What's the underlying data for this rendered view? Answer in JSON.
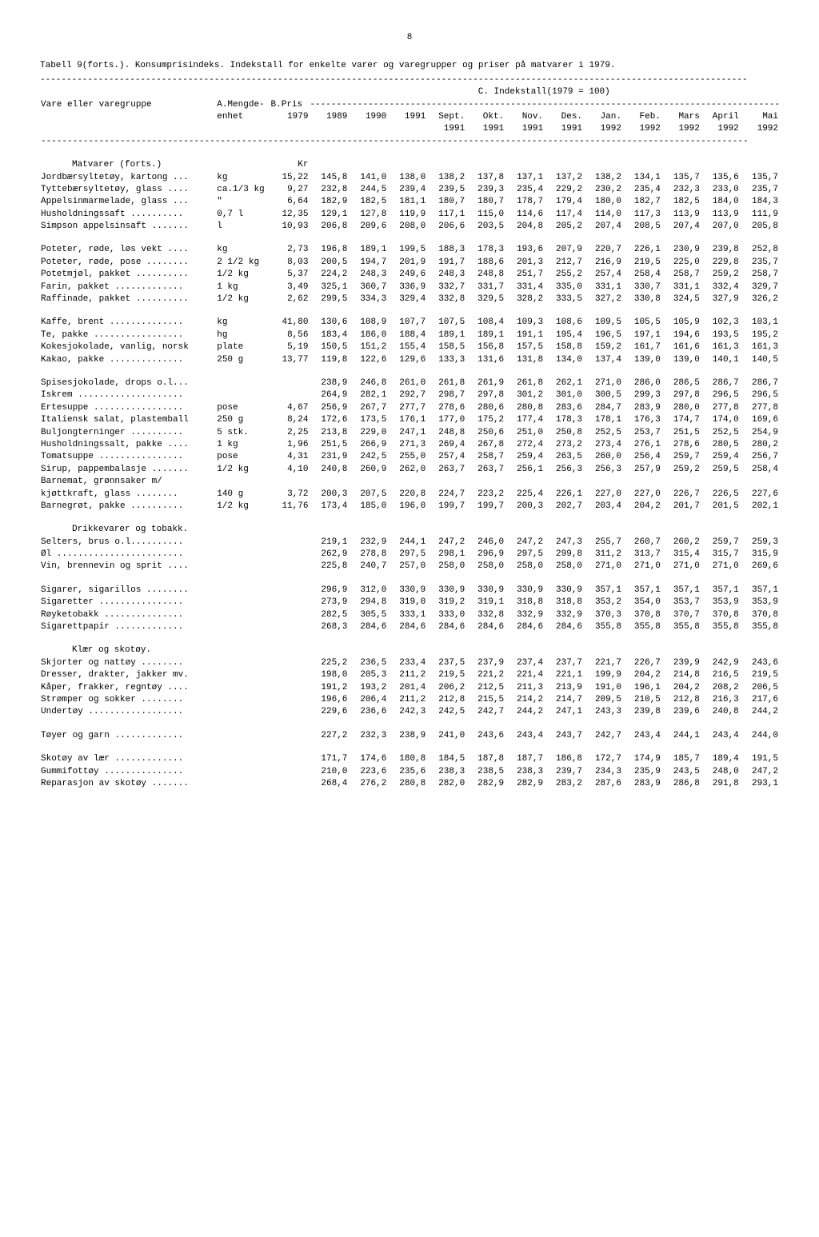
{
  "page_number": "8",
  "title": "Tabell 9(forts.). Konsumprisindeks.  Indekstall for enkelte varer og varegrupper og priser på matvarer i 1979.",
  "header": {
    "index_label": "C. Indekstall(1979 = 100)",
    "col_group": "Vare eller varegruppe",
    "col_unit_a": "A.Mengde-",
    "col_unit_b": "enhet",
    "col_price_a": "B.Pris",
    "col_price_b": "1979",
    "years": [
      "1989",
      "1990",
      "1991",
      "Sept.",
      "Okt.",
      "Nov.",
      "Des.",
      "Jan.",
      "Feb.",
      "Mars",
      "April",
      "Mai"
    ],
    "years2": [
      "",
      "",
      "",
      "1991",
      "1991",
      "1991",
      "1991",
      "1992",
      "1992",
      "1992",
      "1992",
      "1992"
    ]
  },
  "sections": [
    {
      "heading": "Matvarer (forts.)",
      "unit_heading": "Kr",
      "rows": [
        {
          "label": "Jordbærsyltetøy, kartong ...",
          "unit": "kg",
          "price": "15,22",
          "v": [
            "145,8",
            "141,0",
            "138,0",
            "138,2",
            "137,8",
            "137,1",
            "137,2",
            "138,2",
            "134,1",
            "135,7",
            "135,6",
            "135,7"
          ]
        },
        {
          "label": "Tyttebærsyltetøy, glass ....",
          "unit": "ca.1/3 kg",
          "price": "9,27",
          "v": [
            "232,8",
            "244,5",
            "239,4",
            "239,5",
            "239,3",
            "235,4",
            "229,2",
            "230,2",
            "235,4",
            "232,3",
            "233,0",
            "235,7"
          ]
        },
        {
          "label": "Appelsinmarmelade, glass ...",
          "unit": "\"",
          "price": "6,64",
          "v": [
            "182,9",
            "182,5",
            "181,1",
            "180,7",
            "180,7",
            "178,7",
            "179,4",
            "180,0",
            "182,7",
            "182,5",
            "184,0",
            "184,3"
          ]
        },
        {
          "label": "Husholdningssaft ..........",
          "unit": "0,7 l",
          "price": "12,35",
          "v": [
            "129,1",
            "127,8",
            "119,9",
            "117,1",
            "115,0",
            "114,6",
            "117,4",
            "114,0",
            "117,3",
            "113,9",
            "113,9",
            "111,9"
          ]
        },
        {
          "label": "Simpson appelsinsaft .......",
          "unit": "l",
          "price": "10,93",
          "v": [
            "206,8",
            "209,6",
            "208,0",
            "206,6",
            "203,5",
            "204,8",
            "205,2",
            "207,4",
            "208,5",
            "207,4",
            "207,0",
            "205,8"
          ]
        }
      ]
    },
    {
      "rows": [
        {
          "label": "Poteter, røde, løs vekt ....",
          "unit": "kg",
          "price": "2,73",
          "v": [
            "196,8",
            "189,1",
            "199,5",
            "188,3",
            "178,3",
            "193,6",
            "207,9",
            "220,7",
            "226,1",
            "230,9",
            "239,8",
            "252,8"
          ]
        },
        {
          "label": "Poteter, røde, pose ........",
          "unit": "2 1/2 kg",
          "price": "8,03",
          "v": [
            "200,5",
            "194,7",
            "201,9",
            "191,7",
            "188,6",
            "201,3",
            "212,7",
            "216,9",
            "219,5",
            "225,0",
            "229,8",
            "235,7"
          ]
        },
        {
          "label": "Potetmjøl, pakket ..........",
          "unit": "1/2 kg",
          "price": "5,37",
          "v": [
            "224,2",
            "248,3",
            "249,6",
            "248,3",
            "248,8",
            "251,7",
            "255,2",
            "257,4",
            "258,4",
            "258,7",
            "259,2",
            "258,7"
          ]
        },
        {
          "label": "Farin, pakket .............",
          "unit": "1 kg",
          "price": "3,49",
          "v": [
            "325,1",
            "360,7",
            "336,9",
            "332,7",
            "331,7",
            "331,4",
            "335,0",
            "331,1",
            "330,7",
            "331,1",
            "332,4",
            "329,7"
          ]
        },
        {
          "label": "Raffinade, pakket ..........",
          "unit": "1/2 kg",
          "price": "2,62",
          "v": [
            "299,5",
            "334,3",
            "329,4",
            "332,8",
            "329,5",
            "328,2",
            "333,5",
            "327,2",
            "330,8",
            "324,5",
            "327,9",
            "326,2"
          ]
        }
      ]
    },
    {
      "rows": [
        {
          "label": "Kaffe, brent ..............",
          "unit": "kg",
          "price": "41,80",
          "v": [
            "130,6",
            "108,9",
            "107,7",
            "107,5",
            "108,4",
            "109,3",
            "108,6",
            "109,5",
            "105,5",
            "105,9",
            "102,3",
            "103,1"
          ]
        },
        {
          "label": "Te, pakke .................",
          "unit": "hg",
          "price": "8,56",
          "v": [
            "183,4",
            "186,0",
            "188,4",
            "189,1",
            "189,1",
            "191,1",
            "195,4",
            "196,5",
            "197,1",
            "194,6",
            "193,5",
            "195,2"
          ]
        },
        {
          "label": "Kokesjokolade, vanlig, norsk",
          "unit": "plate",
          "price": "5,19",
          "v": [
            "150,5",
            "151,2",
            "155,4",
            "158,5",
            "156,8",
            "157,5",
            "158,8",
            "159,2",
            "161,7",
            "161,6",
            "161,3",
            "161,3"
          ]
        },
        {
          "label": "Kakao, pakke ..............",
          "unit": "250 g",
          "price": "13,77",
          "v": [
            "119,8",
            "122,6",
            "129,6",
            "133,3",
            "131,6",
            "131,8",
            "134,0",
            "137,4",
            "139,0",
            "139,0",
            "140,1",
            "140,5"
          ]
        }
      ]
    },
    {
      "rows": [
        {
          "label": "Spisesjokolade, drops o.l...",
          "unit": "",
          "price": "",
          "v": [
            "238,9",
            "246,8",
            "261,0",
            "261,8",
            "261,9",
            "261,8",
            "262,1",
            "271,0",
            "286,0",
            "286,5",
            "286,7",
            "286,7"
          ]
        },
        {
          "label": "Iskrem ....................",
          "unit": "",
          "price": "",
          "v": [
            "264,9",
            "282,1",
            "292,7",
            "298,7",
            "297,8",
            "301,2",
            "301,0",
            "300,5",
            "299,3",
            "297,8",
            "296,5",
            "296,5"
          ]
        },
        {
          "label": "Ertesuppe .................",
          "unit": "pose",
          "price": "4,67",
          "v": [
            "256,9",
            "267,7",
            "277,7",
            "278,6",
            "280,6",
            "280,8",
            "283,6",
            "284,7",
            "283,9",
            "280,0",
            "277,8",
            "277,8"
          ]
        },
        {
          "label": "Italiensk salat, plastemball",
          "unit": "250 g",
          "price": "8,24",
          "v": [
            "172,6",
            "173,5",
            "176,1",
            "177,0",
            "175,2",
            "177,4",
            "178,3",
            "178,1",
            "176,3",
            "174,7",
            "174,0",
            "169,6"
          ]
        },
        {
          "label": "Buljongterninger ..........",
          "unit": "5 stk.",
          "price": "2,25",
          "v": [
            "213,8",
            "229,0",
            "247,1",
            "248,8",
            "250,6",
            "251,0",
            "250,8",
            "252,5",
            "253,7",
            "251,5",
            "252,5",
            "254,9"
          ]
        },
        {
          "label": "Husholdningssalt, pakke ....",
          "unit": "1 kg",
          "price": "1,96",
          "v": [
            "251,5",
            "266,9",
            "271,3",
            "269,4",
            "267,8",
            "272,4",
            "273,2",
            "273,4",
            "276,1",
            "278,6",
            "280,5",
            "280,2"
          ]
        },
        {
          "label": "Tomatsuppe ................",
          "unit": "pose",
          "price": "4,31",
          "v": [
            "231,9",
            "242,5",
            "255,0",
            "257,4",
            "258,7",
            "259,4",
            "263,5",
            "260,0",
            "256,4",
            "259,7",
            "259,4",
            "256,7"
          ]
        },
        {
          "label": "Sirup, pappembalasje .......",
          "unit": "1/2 kg",
          "price": "4,10",
          "v": [
            "240,8",
            "260,9",
            "262,0",
            "263,7",
            "263,7",
            "256,1",
            "256,3",
            "256,3",
            "257,9",
            "259,2",
            "259,5",
            "258,4"
          ]
        },
        {
          "label": "Barnemat, grønnsaker m/",
          "unit": "",
          "price": "",
          "v": [
            "",
            "",
            "",
            "",
            "",
            "",
            "",
            "",
            "",
            "",
            "",
            ""
          ]
        },
        {
          "label": " kjøttkraft, glass ........",
          "unit": "140 g",
          "price": "3,72",
          "v": [
            "200,3",
            "207,5",
            "220,8",
            "224,7",
            "223,2",
            "225,4",
            "226,1",
            "227,0",
            "227,0",
            "226,7",
            "226,5",
            "227,6"
          ]
        },
        {
          "label": "Barnegrøt, pakke ..........",
          "unit": "1/2 kg",
          "price": "11,76",
          "v": [
            "173,4",
            "185,0",
            "196,0",
            "199,7",
            "199,7",
            "200,3",
            "202,7",
            "203,4",
            "204,2",
            "201,7",
            "201,5",
            "202,1"
          ]
        }
      ]
    },
    {
      "heading": "Drikkevarer og tobakk.",
      "rows": [
        {
          "label": "Selters, brus o.l..........",
          "unit": "",
          "price": "",
          "v": [
            "219,1",
            "232,9",
            "244,1",
            "247,2",
            "246,0",
            "247,2",
            "247,3",
            "255,7",
            "260,7",
            "260,2",
            "259,7",
            "259,3"
          ]
        },
        {
          "label": "Øl ........................",
          "unit": "",
          "price": "",
          "v": [
            "262,9",
            "278,8",
            "297,5",
            "298,1",
            "296,9",
            "297,5",
            "299,8",
            "311,2",
            "313,7",
            "315,4",
            "315,7",
            "315,9"
          ]
        },
        {
          "label": "Vin, brennevin og sprit ....",
          "unit": "",
          "price": "",
          "v": [
            "225,8",
            "240,7",
            "257,0",
            "258,0",
            "258,0",
            "258,0",
            "258,0",
            "271,0",
            "271,0",
            "271,0",
            "271,0",
            "269,6"
          ]
        }
      ]
    },
    {
      "rows": [
        {
          "label": "Sigarer, sigarillos ........",
          "unit": "",
          "price": "",
          "v": [
            "296,9",
            "312,0",
            "330,9",
            "330,9",
            "330,9",
            "330,9",
            "330,9",
            "357,1",
            "357,1",
            "357,1",
            "357,1",
            "357,1"
          ]
        },
        {
          "label": "Sigaretter ................",
          "unit": "",
          "price": "",
          "v": [
            "273,9",
            "294,8",
            "319,0",
            "319,2",
            "319,1",
            "318,8",
            "318,8",
            "353,2",
            "354,0",
            "353,7",
            "353,9",
            "353,9"
          ]
        },
        {
          "label": "Røyketobakk ...............",
          "unit": "",
          "price": "",
          "v": [
            "282,5",
            "305,5",
            "333,1",
            "333,0",
            "332,8",
            "332,9",
            "332,9",
            "370,3",
            "370,8",
            "370,7",
            "370,8",
            "370,8"
          ]
        },
        {
          "label": "Sigarettpapir .............",
          "unit": "",
          "price": "",
          "v": [
            "268,3",
            "284,6",
            "284,6",
            "284,6",
            "284,6",
            "284,6",
            "284,6",
            "355,8",
            "355,8",
            "355,8",
            "355,8",
            "355,8"
          ]
        }
      ]
    },
    {
      "heading": "Klær og skotøy.",
      "rows": [
        {
          "label": "Skjorter og nattøy ........",
          "unit": "",
          "price": "",
          "v": [
            "225,2",
            "236,5",
            "233,4",
            "237,5",
            "237,9",
            "237,4",
            "237,7",
            "221,7",
            "226,7",
            "239,9",
            "242,9",
            "243,6"
          ]
        },
        {
          "label": "Dresser, drakter, jakker mv.",
          "unit": "",
          "price": "",
          "v": [
            "198,0",
            "205,3",
            "211,2",
            "219,5",
            "221,2",
            "221,4",
            "221,1",
            "199,9",
            "204,2",
            "214,8",
            "216,5",
            "219,5"
          ]
        },
        {
          "label": "Kåper, frakker, regntøy ....",
          "unit": "",
          "price": "",
          "v": [
            "191,2",
            "193,2",
            "201,4",
            "206,2",
            "212,5",
            "211,3",
            "213,9",
            "191,0",
            "196,1",
            "204,2",
            "208,2",
            "206,5"
          ]
        },
        {
          "label": "Strømper og sokker ........",
          "unit": "",
          "price": "",
          "v": [
            "196,6",
            "206,4",
            "211,2",
            "212,8",
            "215,5",
            "214,2",
            "214,7",
            "209,5",
            "210,5",
            "212,8",
            "216,3",
            "217,6"
          ]
        },
        {
          "label": "Undertøy ..................",
          "unit": "",
          "price": "",
          "v": [
            "229,6",
            "236,6",
            "242,3",
            "242,5",
            "242,7",
            "244,2",
            "247,1",
            "243,3",
            "239,8",
            "239,6",
            "240,8",
            "244,2"
          ]
        }
      ]
    },
    {
      "rows": [
        {
          "label": "Tøyer og garn .............",
          "unit": "",
          "price": "",
          "v": [
            "227,2",
            "232,3",
            "238,9",
            "241,0",
            "243,6",
            "243,4",
            "243,7",
            "242,7",
            "243,4",
            "244,1",
            "243,4",
            "244,0"
          ]
        }
      ]
    },
    {
      "rows": [
        {
          "label": "Skotøy av lær .............",
          "unit": "",
          "price": "",
          "v": [
            "171,7",
            "174,6",
            "180,8",
            "184,5",
            "187,8",
            "187,7",
            "186,8",
            "172,7",
            "174,9",
            "185,7",
            "189,4",
            "191,5"
          ]
        },
        {
          "label": "Gummifottøy ...............",
          "unit": "",
          "price": "",
          "v": [
            "210,0",
            "223,6",
            "235,6",
            "238,3",
            "238,5",
            "238,3",
            "239,7",
            "234,3",
            "235,9",
            "243,5",
            "248,0",
            "247,2"
          ]
        },
        {
          "label": "Reparasjon av skotøy .......",
          "unit": "",
          "price": "",
          "v": [
            "268,4",
            "276,2",
            "280,8",
            "282,0",
            "282,9",
            "282,9",
            "283,2",
            "287,6",
            "283,9",
            "286,8",
            "291,8",
            "293,1"
          ]
        }
      ]
    }
  ]
}
